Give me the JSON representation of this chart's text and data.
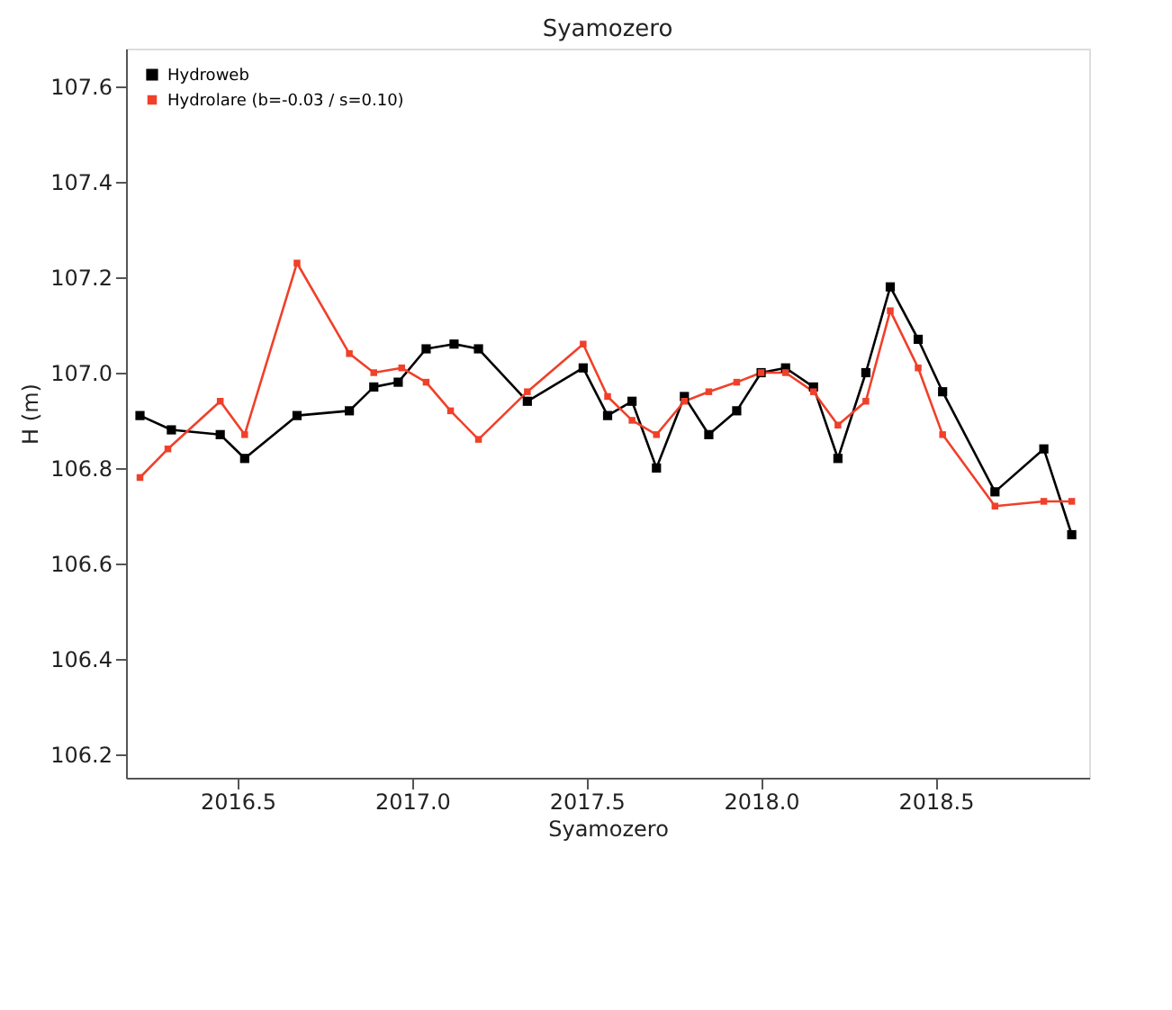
{
  "chart_data": {
    "type": "line",
    "title": "Syamozero",
    "xlabel": "Syamozero",
    "ylabel": "H (m)",
    "xlim": [
      2016.18,
      2018.94
    ],
    "xticks": [
      {
        "value": 2016.5,
        "label": "2016.5"
      },
      {
        "value": 2017.0,
        "label": "2017.0"
      },
      {
        "value": 2017.5,
        "label": "2017.5"
      },
      {
        "value": 2018.0,
        "label": "2018.0"
      },
      {
        "value": 2018.5,
        "label": "2018.5"
      }
    ],
    "ylim": [
      106.15,
      107.68
    ],
    "yticks": [
      106.2,
      106.4,
      106.6,
      106.8,
      {
        "value": 107.0,
        "label": "107.0"
      },
      107.2,
      107.4,
      107.6
    ],
    "grid": false,
    "legend": "top left",
    "marker": "square",
    "line_style": "solid",
    "series": [
      {
        "name": "Hydroweb",
        "color": "#000000",
        "x": [
          2016.22,
          2016.31,
          2016.45,
          2016.52,
          2016.67,
          2016.82,
          2016.89,
          2016.96,
          2017.04,
          2017.12,
          2017.19,
          2017.33,
          2017.49,
          2017.56,
          2017.63,
          2017.7,
          2017.78,
          2017.85,
          2017.93,
          2018.0,
          2018.07,
          2018.15,
          2018.22,
          2018.3,
          2018.37,
          2018.45,
          2018.52,
          2018.67,
          2018.81,
          2018.89
        ],
        "values": [
          106.91,
          106.88,
          106.87,
          106.82,
          106.91,
          106.92,
          106.97,
          106.98,
          107.05,
          107.06,
          107.05,
          106.94,
          107.01,
          106.91,
          106.94,
          106.8,
          106.95,
          106.87,
          106.92,
          107.0,
          107.01,
          106.97,
          106.82,
          107.0,
          107.18,
          107.07,
          106.96,
          106.75,
          106.84,
          106.66
        ]
      },
      {
        "name": "Hydrolare (b=-0.03 / s=0.10)",
        "color": "#f0402a",
        "x": [
          2016.22,
          2016.3,
          2016.45,
          2016.52,
          2016.67,
          2016.82,
          2016.89,
          2016.97,
          2017.04,
          2017.11,
          2017.19,
          2017.33,
          2017.49,
          2017.56,
          2017.63,
          2017.7,
          2017.78,
          2017.85,
          2017.93,
          2018.0,
          2018.07,
          2018.15,
          2018.22,
          2018.3,
          2018.37,
          2018.45,
          2018.52,
          2018.67,
          2018.81,
          2018.89
        ],
        "values": [
          106.78,
          106.84,
          106.94,
          106.87,
          107.23,
          107.04,
          107.0,
          107.01,
          106.98,
          106.92,
          106.86,
          106.96,
          107.06,
          106.95,
          106.9,
          106.87,
          106.94,
          106.96,
          106.98,
          107.0,
          107.0,
          106.96,
          106.89,
          106.94,
          107.13,
          107.01,
          106.87,
          106.72,
          106.73,
          106.73
        ]
      }
    ]
  }
}
